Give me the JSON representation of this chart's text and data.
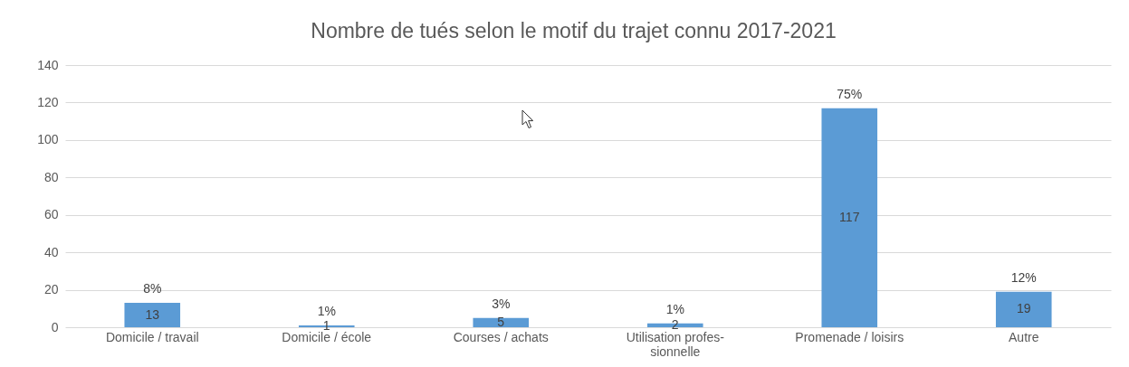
{
  "chart_data": {
    "type": "bar",
    "title": "Nombre de tués selon le motif du trajet connu 2017-2021",
    "categories": [
      "Domicile / travail",
      "Domicile / école",
      "Courses / achats",
      "Utilisation profes-sionnelle",
      "Promenade / loisirs",
      "Autre"
    ],
    "values": [
      13,
      1,
      5,
      2,
      117,
      19
    ],
    "color": "#5b9bd5",
    "data_labels": true,
    "ylim": [
      0,
      140
    ],
    "yticks": [
      0,
      20,
      40,
      60,
      80,
      100,
      120,
      140
    ],
    "grid": "y",
    "annotations": [
      {
        "text": "8%",
        "x": "Domicile / travail",
        "y": 13
      },
      {
        "text": "1%",
        "x": "Domicile / école",
        "y": 1
      },
      {
        "text": "3%",
        "x": "Courses / achats",
        "y": 5
      },
      {
        "text": "1%",
        "x": "Utilisation profes-sionnelle",
        "y": 2
      },
      {
        "text": "75%",
        "x": "Promenade / loisirs",
        "y": 117
      },
      {
        "text": "12%",
        "x": "Autre",
        "y": 19
      }
    ]
  }
}
